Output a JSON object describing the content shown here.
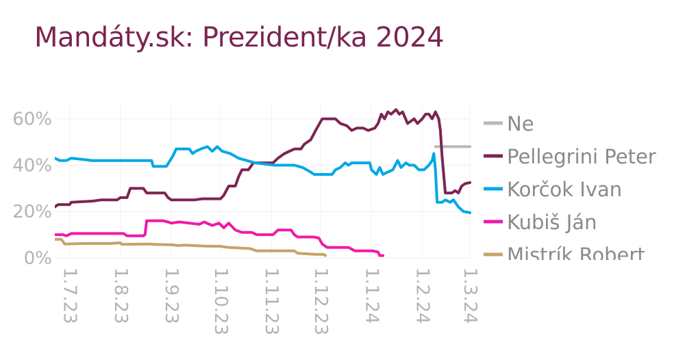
{
  "chart_data": {
    "type": "line",
    "title": "Mandáty.sk: Prezident/ka 2024",
    "ylim": [
      0,
      0.67
    ],
    "xlim": [
      "2023-06-22",
      "2024-03-01"
    ],
    "grid": true,
    "legend_position": "right",
    "y_ticks": [
      {
        "value": 0,
        "label": "0%"
      },
      {
        "value": 0.2,
        "label": "20%"
      },
      {
        "value": 0.4,
        "label": "40%"
      },
      {
        "value": 0.6,
        "label": "60%"
      }
    ],
    "x_ticks": [
      {
        "date": "2023-07-01",
        "label": "1.7.23"
      },
      {
        "date": "2023-08-01",
        "label": "1.8.23"
      },
      {
        "date": "2023-09-01",
        "label": "1.9.23"
      },
      {
        "date": "2023-10-01",
        "label": "1.10.23"
      },
      {
        "date": "2023-11-01",
        "label": "1.11.23"
      },
      {
        "date": "2023-12-01",
        "label": "1.12.23"
      },
      {
        "date": "2024-01-01",
        "label": "1.1.24"
      },
      {
        "date": "2024-02-01",
        "label": "1.2.24"
      },
      {
        "date": "2024-03-01",
        "label": "1.3.24"
      }
    ],
    "series": [
      {
        "name": "Ne",
        "color": "#b8b8b8",
        "points": [
          [
            "2024-02-09",
            0.48
          ],
          [
            "2024-03-01",
            0.48
          ]
        ]
      },
      {
        "name": "Pellegrini Peter",
        "color": "#7d2550",
        "points": [
          [
            "2023-06-22",
            0.22
          ],
          [
            "2023-06-24",
            0.23
          ],
          [
            "2023-07-01",
            0.23
          ],
          [
            "2023-07-02",
            0.24
          ],
          [
            "2023-07-15",
            0.245
          ],
          [
            "2023-07-20",
            0.25
          ],
          [
            "2023-07-30",
            0.25
          ],
          [
            "2023-08-01",
            0.26
          ],
          [
            "2023-08-05",
            0.26
          ],
          [
            "2023-08-07",
            0.3
          ],
          [
            "2023-08-15",
            0.3
          ],
          [
            "2023-08-17",
            0.28
          ],
          [
            "2023-08-28",
            0.28
          ],
          [
            "2023-08-30",
            0.26
          ],
          [
            "2023-09-01",
            0.25
          ],
          [
            "2023-09-15",
            0.25
          ],
          [
            "2023-09-20",
            0.255
          ],
          [
            "2023-10-01",
            0.255
          ],
          [
            "2023-10-03",
            0.27
          ],
          [
            "2023-10-06",
            0.31
          ],
          [
            "2023-10-10",
            0.31
          ],
          [
            "2023-10-12",
            0.35
          ],
          [
            "2023-10-14",
            0.38
          ],
          [
            "2023-10-18",
            0.38
          ],
          [
            "2023-10-21",
            0.41
          ],
          [
            "2023-10-25",
            0.41
          ],
          [
            "2023-11-02",
            0.41
          ],
          [
            "2023-11-05",
            0.43
          ],
          [
            "2023-11-09",
            0.45
          ],
          [
            "2023-11-15",
            0.47
          ],
          [
            "2023-11-19",
            0.47
          ],
          [
            "2023-11-21",
            0.49
          ],
          [
            "2023-11-25",
            0.51
          ],
          [
            "2023-11-28",
            0.55
          ],
          [
            "2023-12-02",
            0.6
          ],
          [
            "2023-12-10",
            0.6
          ],
          [
            "2023-12-13",
            0.58
          ],
          [
            "2023-12-17",
            0.57
          ],
          [
            "2023-12-20",
            0.55
          ],
          [
            "2023-12-23",
            0.56
          ],
          [
            "2023-12-27",
            0.56
          ],
          [
            "2023-12-30",
            0.55
          ],
          [
            "2024-01-03",
            0.56
          ],
          [
            "2024-01-05",
            0.58
          ],
          [
            "2024-01-07",
            0.62
          ],
          [
            "2024-01-09",
            0.6
          ],
          [
            "2024-01-11",
            0.63
          ],
          [
            "2024-01-13",
            0.62
          ],
          [
            "2024-01-16",
            0.64
          ],
          [
            "2024-01-18",
            0.62
          ],
          [
            "2024-01-20",
            0.63
          ],
          [
            "2024-01-23",
            0.58
          ],
          [
            "2024-01-25",
            0.59
          ],
          [
            "2024-01-27",
            0.6
          ],
          [
            "2024-01-29",
            0.58
          ],
          [
            "2024-02-01",
            0.6
          ],
          [
            "2024-02-03",
            0.62
          ],
          [
            "2024-02-05",
            0.62
          ],
          [
            "2024-02-07",
            0.6
          ],
          [
            "2024-02-09",
            0.63
          ],
          [
            "2024-02-11",
            0.6
          ],
          [
            "2024-02-12",
            0.55
          ],
          [
            "2024-02-13",
            0.44
          ],
          [
            "2024-02-15",
            0.28
          ],
          [
            "2024-02-19",
            0.28
          ],
          [
            "2024-02-21",
            0.29
          ],
          [
            "2024-02-23",
            0.28
          ],
          [
            "2024-02-25",
            0.31
          ],
          [
            "2024-02-27",
            0.32
          ],
          [
            "2024-03-01",
            0.325
          ]
        ]
      },
      {
        "name": "Korčok Ivan",
        "color": "#00a8e6",
        "points": [
          [
            "2023-06-22",
            0.43
          ],
          [
            "2023-06-25",
            0.42
          ],
          [
            "2023-06-29",
            0.42
          ],
          [
            "2023-07-02",
            0.43
          ],
          [
            "2023-07-15",
            0.42
          ],
          [
            "2023-07-30",
            0.42
          ],
          [
            "2023-08-20",
            0.42
          ],
          [
            "2023-08-21",
            0.395
          ],
          [
            "2023-08-29",
            0.395
          ],
          [
            "2023-09-02",
            0.44
          ],
          [
            "2023-09-04",
            0.47
          ],
          [
            "2023-09-12",
            0.47
          ],
          [
            "2023-09-14",
            0.45
          ],
          [
            "2023-09-16",
            0.46
          ],
          [
            "2023-09-19",
            0.47
          ],
          [
            "2023-09-23",
            0.48
          ],
          [
            "2023-09-26",
            0.46
          ],
          [
            "2023-09-29",
            0.48
          ],
          [
            "2023-10-02",
            0.46
          ],
          [
            "2023-10-07",
            0.45
          ],
          [
            "2023-10-12",
            0.43
          ],
          [
            "2023-10-22",
            0.41
          ],
          [
            "2023-11-03",
            0.4
          ],
          [
            "2023-11-10",
            0.4
          ],
          [
            "2023-11-15",
            0.4
          ],
          [
            "2023-11-20",
            0.39
          ],
          [
            "2023-11-25",
            0.37
          ],
          [
            "2023-11-27",
            0.36
          ],
          [
            "2023-12-03",
            0.36
          ],
          [
            "2023-12-08",
            0.36
          ],
          [
            "2023-12-10",
            0.38
          ],
          [
            "2023-12-13",
            0.39
          ],
          [
            "2023-12-16",
            0.41
          ],
          [
            "2023-12-18",
            0.4
          ],
          [
            "2023-12-20",
            0.41
          ],
          [
            "2023-12-26",
            0.41
          ],
          [
            "2023-12-31",
            0.41
          ],
          [
            "2024-01-01",
            0.38
          ],
          [
            "2024-01-04",
            0.36
          ],
          [
            "2024-01-06",
            0.39
          ],
          [
            "2024-01-08",
            0.36
          ],
          [
            "2024-01-11",
            0.37
          ],
          [
            "2024-01-14",
            0.38
          ],
          [
            "2024-01-17",
            0.42
          ],
          [
            "2024-01-19",
            0.39
          ],
          [
            "2024-01-22",
            0.41
          ],
          [
            "2024-01-24",
            0.4
          ],
          [
            "2024-01-27",
            0.4
          ],
          [
            "2024-01-30",
            0.38
          ],
          [
            "2024-02-02",
            0.38
          ],
          [
            "2024-02-05",
            0.4
          ],
          [
            "2024-02-07",
            0.42
          ],
          [
            "2024-02-08",
            0.45
          ],
          [
            "2024-02-09",
            0.38
          ],
          [
            "2024-02-10",
            0.24
          ],
          [
            "2024-02-13",
            0.24
          ],
          [
            "2024-02-15",
            0.25
          ],
          [
            "2024-02-18",
            0.24
          ],
          [
            "2024-02-20",
            0.25
          ],
          [
            "2024-02-23",
            0.22
          ],
          [
            "2024-02-26",
            0.2
          ],
          [
            "2024-03-01",
            0.195
          ]
        ]
      },
      {
        "name": "Kubiš Ján",
        "color": "#f01aa6",
        "points": [
          [
            "2023-06-22",
            0.1
          ],
          [
            "2023-06-27",
            0.1
          ],
          [
            "2023-06-29",
            0.095
          ],
          [
            "2023-07-02",
            0.105
          ],
          [
            "2023-07-20",
            0.105
          ],
          [
            "2023-08-03",
            0.105
          ],
          [
            "2023-08-05",
            0.095
          ],
          [
            "2023-08-15",
            0.095
          ],
          [
            "2023-08-16",
            0.1
          ],
          [
            "2023-08-17",
            0.16
          ],
          [
            "2023-08-27",
            0.16
          ],
          [
            "2023-08-30",
            0.155
          ],
          [
            "2023-09-01",
            0.15
          ],
          [
            "2023-09-06",
            0.155
          ],
          [
            "2023-09-12",
            0.15
          ],
          [
            "2023-09-18",
            0.145
          ],
          [
            "2023-09-21",
            0.155
          ],
          [
            "2023-09-26",
            0.14
          ],
          [
            "2023-09-30",
            0.15
          ],
          [
            "2023-10-03",
            0.13
          ],
          [
            "2023-10-06",
            0.15
          ],
          [
            "2023-10-10",
            0.12
          ],
          [
            "2023-10-14",
            0.11
          ],
          [
            "2023-10-20",
            0.11
          ],
          [
            "2023-10-23",
            0.1
          ],
          [
            "2023-11-02",
            0.1
          ],
          [
            "2023-11-05",
            0.12
          ],
          [
            "2023-11-13",
            0.12
          ],
          [
            "2023-11-15",
            0.1
          ],
          [
            "2023-11-17",
            0.09
          ],
          [
            "2023-11-27",
            0.09
          ],
          [
            "2023-11-30",
            0.085
          ],
          [
            "2023-12-02",
            0.06
          ],
          [
            "2023-12-05",
            0.045
          ],
          [
            "2023-12-18",
            0.045
          ],
          [
            "2023-12-22",
            0.03
          ],
          [
            "2024-01-02",
            0.03
          ],
          [
            "2024-01-05",
            0.025
          ],
          [
            "2024-01-06",
            0.01
          ],
          [
            "2024-01-08",
            0.01
          ]
        ]
      },
      {
        "name": "Mistrík Robert",
        "color": "#c4a46a",
        "points": [
          [
            "2023-06-22",
            0.08
          ],
          [
            "2023-06-26",
            0.08
          ],
          [
            "2023-06-28",
            0.06
          ],
          [
            "2023-07-10",
            0.062
          ],
          [
            "2023-07-25",
            0.062
          ],
          [
            "2023-08-01",
            0.065
          ],
          [
            "2023-08-02",
            0.058
          ],
          [
            "2023-08-20",
            0.06
          ],
          [
            "2023-08-21",
            0.058
          ],
          [
            "2023-09-02",
            0.056
          ],
          [
            "2023-09-05",
            0.053
          ],
          [
            "2023-09-09",
            0.055
          ],
          [
            "2023-09-21",
            0.051
          ],
          [
            "2023-10-01",
            0.05
          ],
          [
            "2023-10-06",
            0.045
          ],
          [
            "2023-10-19",
            0.04
          ],
          [
            "2023-10-23",
            0.03
          ],
          [
            "2023-11-10",
            0.03
          ],
          [
            "2023-11-15",
            0.03
          ],
          [
            "2023-11-17",
            0.02
          ],
          [
            "2023-11-28",
            0.015
          ],
          [
            "2023-12-03",
            0.015
          ],
          [
            "2023-12-04",
            0.01
          ]
        ]
      }
    ]
  }
}
